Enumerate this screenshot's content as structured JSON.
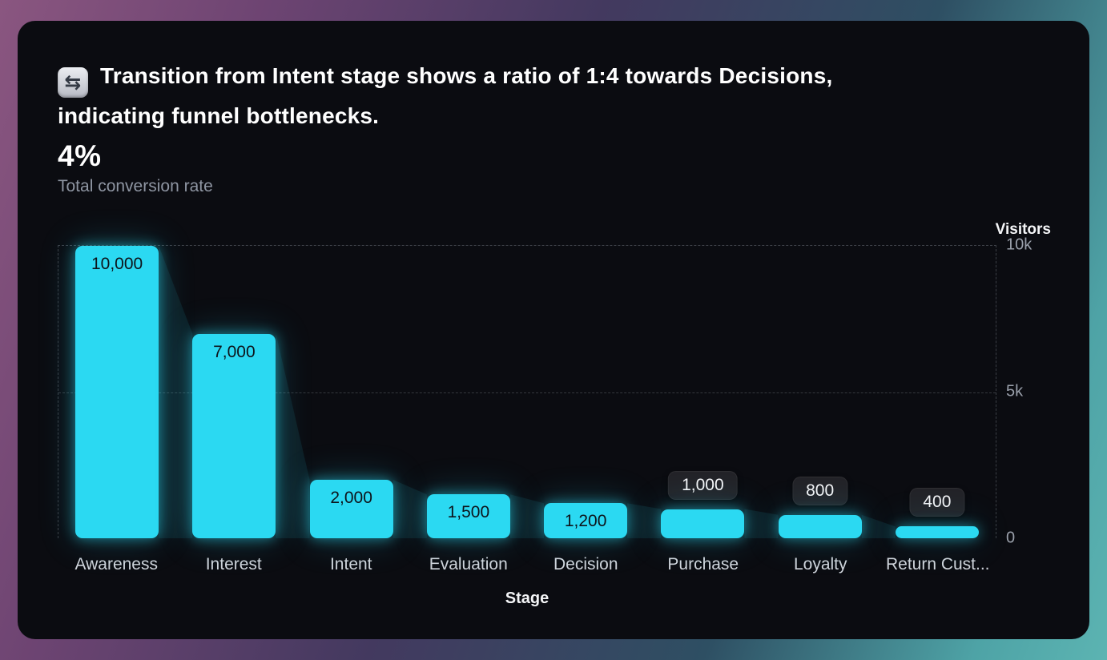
{
  "card": {
    "icon_glyph": "⇆",
    "title": "Transition from Intent stage shows a ratio of 1:4 towards Decisions, indicating funnel bottlenecks.",
    "title_lines": [
      "Transition from Intent stage shows a ratio of 1:4 towards Decisions,",
      "indicating funnel bottlenecks."
    ],
    "kpi_value": "4%",
    "kpi_caption": "Total conversion rate"
  },
  "chart_data": {
    "type": "bar",
    "variant": "funnel",
    "title": "Transition from Intent stage shows a ratio of 1:4 towards Decisions, indicating funnel bottlenecks.",
    "categories": [
      "Awareness",
      "Interest",
      "Intent",
      "Evaluation",
      "Decision",
      "Purchase",
      "Loyalty",
      "Return Cust..."
    ],
    "values": [
      10000,
      7000,
      2000,
      1500,
      1200,
      1000,
      800,
      400
    ],
    "value_labels": [
      "10,000",
      "7,000",
      "2,000",
      "1,500",
      "1,200",
      "1,000",
      "800",
      "400"
    ],
    "label_placement_threshold": 1200,
    "xlabel": "Stage",
    "ylabel": "Visitors",
    "ylim": [
      0,
      10000
    ],
    "yticks": [
      {
        "value": 10000,
        "label": "10k"
      },
      {
        "value": 5000,
        "label": "5k"
      },
      {
        "value": 0,
        "label": "0"
      }
    ],
    "grid": "dashed",
    "legend": "none",
    "colors": {
      "bar": "#2BD9F2",
      "label_on_bar": "#0D141B",
      "pill_bg": "#232328",
      "pill_text": "#F5F5F7",
      "grid": "#3B3E45",
      "axis_text": "#9AA0AB",
      "category_text": "#D0D4DB",
      "card_bg": "#0B0C11"
    }
  }
}
